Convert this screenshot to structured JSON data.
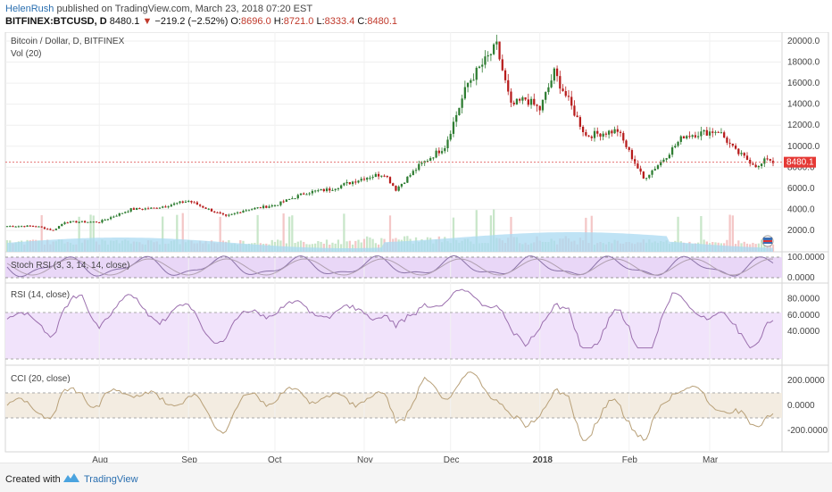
{
  "header": {
    "author": "HelenRush",
    "published_text": "published on TradingView.com, March 23, 2018 07:20 EST",
    "symbol": "BITFINEX:BTCUSD, D",
    "last": "8480.1",
    "change": "−219.2 (−2.52%)",
    "o_label": "O:",
    "o_value": "8696.0",
    "h_label": "H:",
    "h_value": "8721.0",
    "l_label": "L:",
    "l_value": "8333.4",
    "c_label": "C:",
    "c_value": "8480.1"
  },
  "panes": {
    "main_title": "Bitcoin / Dollar, D, BITFINEX",
    "vol_title": "Vol (20)",
    "stoch_title": "Stoch RSI (3, 3, 14, 14, close)",
    "rsi_title": "RSI (14, close)",
    "cci_title": "CCI (20, close)"
  },
  "price_axis": [
    "20000.0",
    "18000.0",
    "16000.0",
    "14000.0",
    "12000.0",
    "10000.0",
    "8000.0",
    "6000.0",
    "4000.0",
    "2000.0"
  ],
  "last_price_tag": "8480.1",
  "stoch_axis": [
    "100.0000",
    "0.0000"
  ],
  "rsi_axis": [
    "80.0000",
    "60.0000",
    "40.0000"
  ],
  "cci_axis": [
    "200.0000",
    "0.0000",
    "-200.0000"
  ],
  "time_axis": [
    "Aug",
    "Sep",
    "Oct",
    "Nov",
    "Dec",
    "2018",
    "Feb",
    "Mar"
  ],
  "footer": {
    "created_with": "Created with",
    "brand": "TradingView"
  },
  "colors": {
    "up": "#2e7d32",
    "down": "#b71c1c",
    "vol_ma": "#7fc4ea",
    "stoch_bg": "#e9d7f7",
    "rsi_bg": "#f1e3fb",
    "cci_bg": "#f3ece1",
    "price_line": "#e57373"
  },
  "chart_data": {
    "type": "candlestick",
    "title": "Bitcoin / Dollar, D, BITFINEX",
    "price_range": [
      0,
      21000
    ],
    "close_series_anchors": [
      [
        "Jul 10",
        2400
      ],
      [
        "Jul 16",
        2000
      ],
      [
        "Jul 20",
        2800
      ],
      [
        "Aug 1",
        2800
      ],
      [
        "Aug 12",
        4000
      ],
      [
        "Aug 20",
        4100
      ],
      [
        "Sep 1",
        4800
      ],
      [
        "Sep 14",
        3300
      ],
      [
        "Sep 20",
        3900
      ],
      [
        "Oct 1",
        4400
      ],
      [
        "Oct 12",
        5600
      ],
      [
        "Oct 20",
        5900
      ],
      [
        "Nov 1",
        7000
      ],
      [
        "Nov 8",
        7400
      ],
      [
        "Nov 12",
        5900
      ],
      [
        "Nov 20",
        8100
      ],
      [
        "Nov 29",
        10000
      ],
      [
        "Dec 7",
        16000
      ],
      [
        "Dec 17",
        19500
      ],
      [
        "Dec 22",
        13800
      ],
      [
        "Dec 27",
        14500
      ],
      [
        "Jan 1",
        13500
      ],
      [
        "Jan 6",
        17000
      ],
      [
        "Jan 17",
        11000
      ],
      [
        "Jan 28",
        11500
      ],
      [
        "Feb 6",
        6900
      ],
      [
        "Feb 12",
        8500
      ],
      [
        "Feb 20",
        11000
      ],
      [
        "Mar 4",
        11500
      ],
      [
        "Mar 10",
        9500
      ],
      [
        "Mar 18",
        8000
      ],
      [
        "Mar 21",
        8900
      ],
      [
        "Mar 23",
        8480
      ]
    ]
  }
}
